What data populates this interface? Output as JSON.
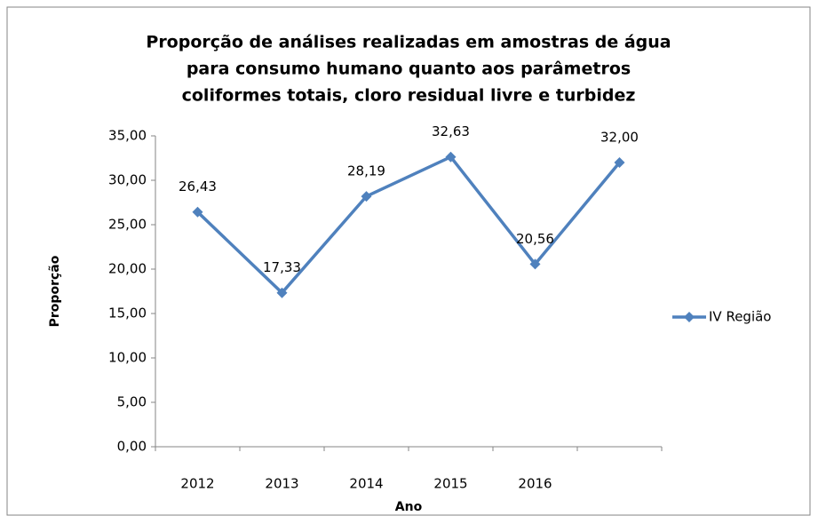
{
  "chart_data": {
    "type": "line",
    "title": [
      "Proporção de análises realizadas em amostras de água",
      "para consumo humano quanto aos parâmetros",
      "coliformes totais, cloro residual livre e turbidez"
    ],
    "x_label": "Ano",
    "y_label": "Proporção",
    "categories": [
      "2012",
      "2013",
      "2014",
      "2015",
      "2016",
      null
    ],
    "series": [
      {
        "name": "IV Região",
        "color": "#4f81bd",
        "values": [
          26.43,
          17.33,
          28.19,
          32.63,
          20.56,
          32.0
        ],
        "value_labels": [
          "26,43",
          "17,33",
          "28,19",
          "32,63",
          "20,56",
          "32,00"
        ]
      }
    ],
    "ylim": [
      0,
      35
    ],
    "yticks": [
      {
        "value": 0,
        "label": "0,00"
      },
      {
        "value": 5,
        "label": "5,00"
      },
      {
        "value": 10,
        "label": "10,00"
      },
      {
        "value": 15,
        "label": "15,00"
      },
      {
        "value": 20,
        "label": "20,00"
      },
      {
        "value": 25,
        "label": "25,00"
      },
      {
        "value": 30,
        "label": "30,00"
      },
      {
        "value": 35,
        "label": "35,00"
      }
    ],
    "grid": false,
    "legend": "right"
  }
}
